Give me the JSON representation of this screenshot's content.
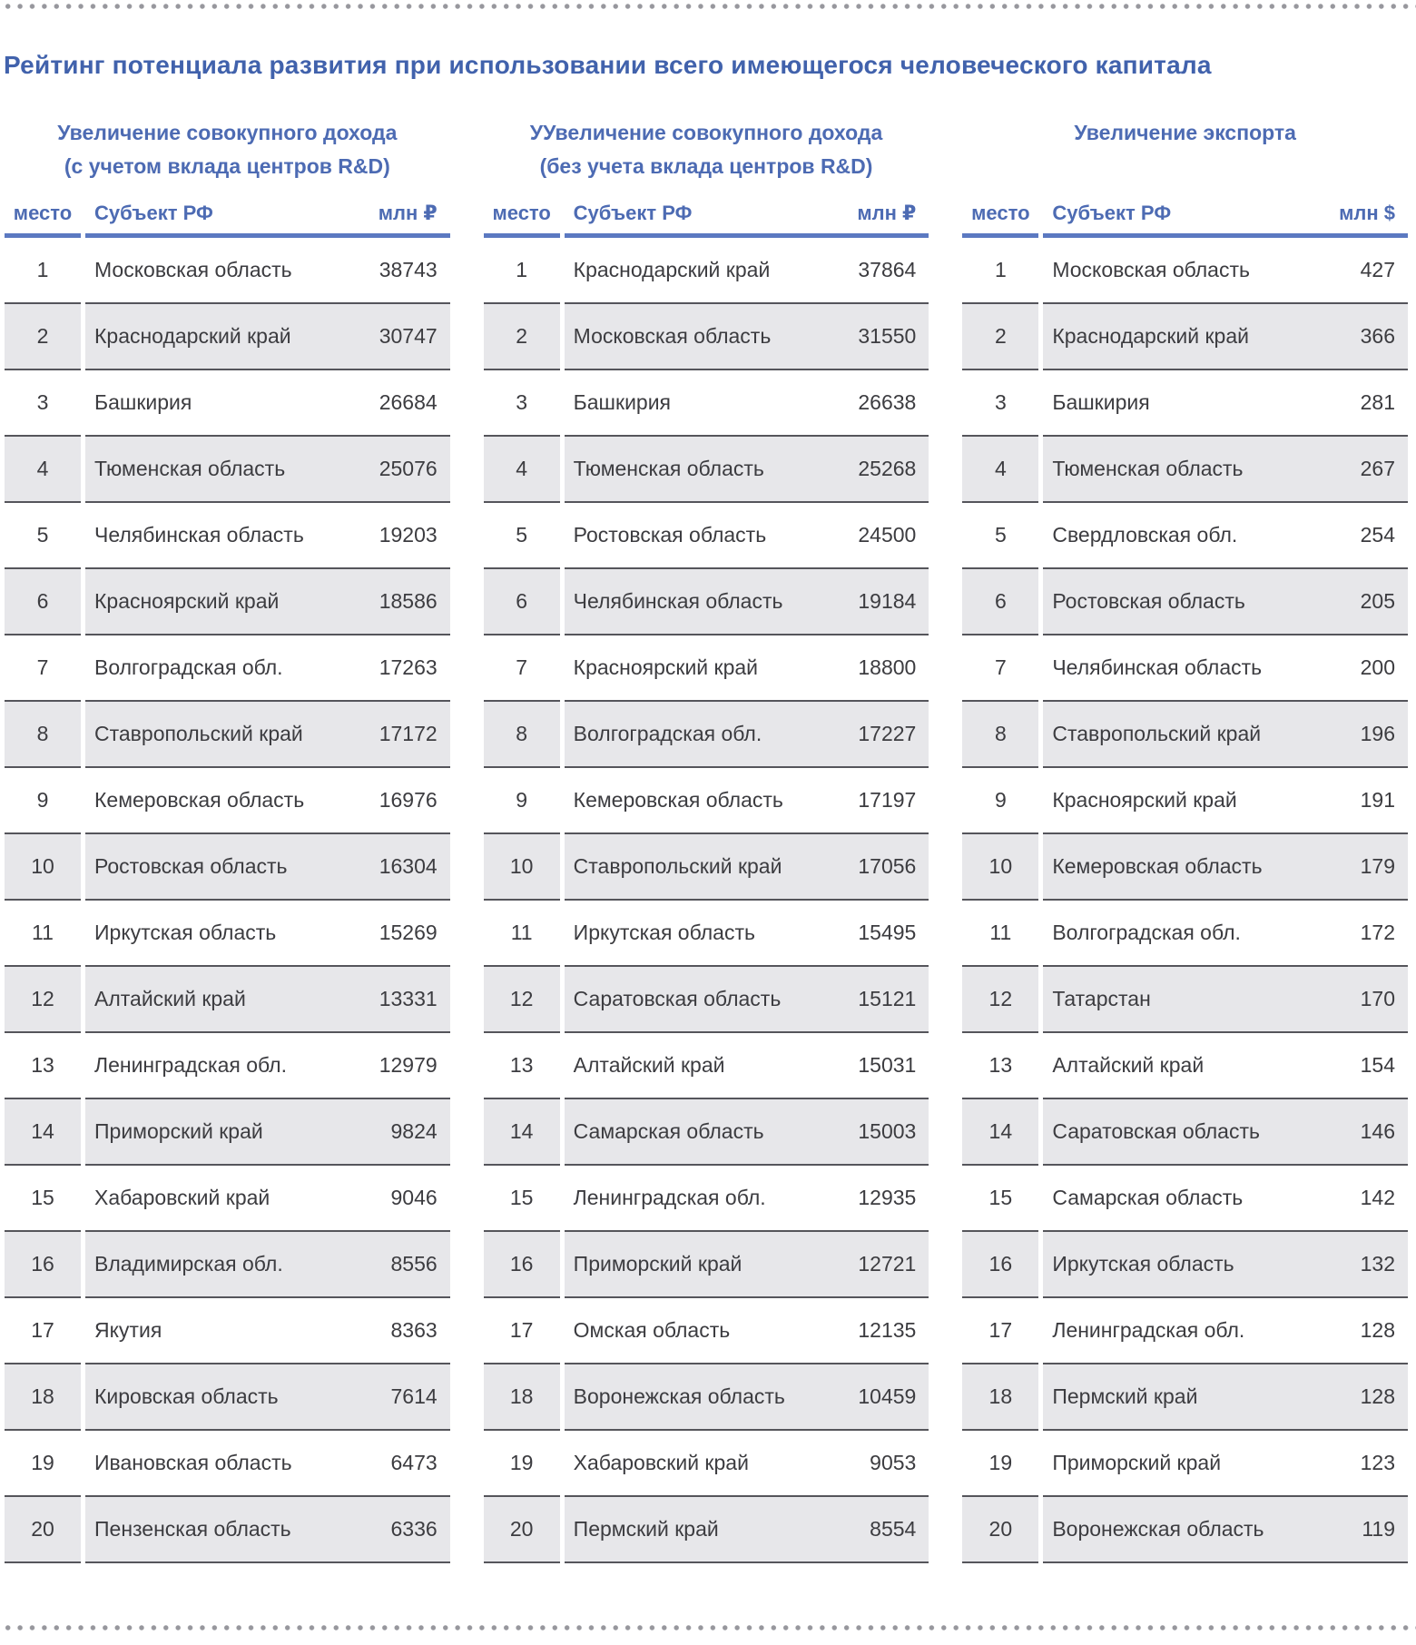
{
  "page": {
    "title": "Рейтинг потенциала развития при использовании всего имеющегося человеческого капитала"
  },
  "colors": {
    "title_blue": "#4162ac",
    "header_blue": "#4d6bb3",
    "header_rule_blue": "#5b79c1",
    "row_separator": "#55555b",
    "row_alt_gray": "#e7e7ea",
    "body_text": "#3c3c40",
    "dot_gray": "#97979d"
  },
  "tables": [
    {
      "title_line1": "Увеличение совокупного дохода",
      "title_line2": "(с учетом вклада центров R&D)",
      "columns": {
        "place": "место",
        "subject": "Субъект РФ",
        "value": "млн ₽"
      },
      "rows": [
        {
          "place": "1",
          "subject": "Московская область",
          "value": "38743"
        },
        {
          "place": "2",
          "subject": "Краснодарский край",
          "value": "30747"
        },
        {
          "place": "3",
          "subject": "Башкирия",
          "value": "26684"
        },
        {
          "place": "4",
          "subject": "Тюменская область",
          "value": "25076"
        },
        {
          "place": "5",
          "subject": "Челябинская область",
          "value": "19203"
        },
        {
          "place": "6",
          "subject": "Красноярский край",
          "value": "18586"
        },
        {
          "place": "7",
          "subject": "Волгоградская обл.",
          "value": "17263"
        },
        {
          "place": "8",
          "subject": "Ставропольский край",
          "value": "17172"
        },
        {
          "place": "9",
          "subject": "Кемеровская область",
          "value": "16976"
        },
        {
          "place": "10",
          "subject": "Ростовская область",
          "value": "16304"
        },
        {
          "place": "11",
          "subject": "Иркутская область",
          "value": "15269"
        },
        {
          "place": "12",
          "subject": "Алтайский край",
          "value": "13331"
        },
        {
          "place": "13",
          "subject": "Ленинградская обл.",
          "value": "12979"
        },
        {
          "place": "14",
          "subject": "Приморский край",
          "value": "9824"
        },
        {
          "place": "15",
          "subject": "Хабаровский край",
          "value": "9046"
        },
        {
          "place": "16",
          "subject": "Владимирская обл.",
          "value": "8556"
        },
        {
          "place": "17",
          "subject": "Якутия",
          "value": "8363"
        },
        {
          "place": "18",
          "subject": "Кировская область",
          "value": "7614"
        },
        {
          "place": "19",
          "subject": "Ивановская область",
          "value": "6473"
        },
        {
          "place": "20",
          "subject": "Пензенская область",
          "value": "6336"
        }
      ]
    },
    {
      "title_line1": "УУвеличение совокупного дохода",
      "title_line2": "(без учета вклада центров R&D)",
      "columns": {
        "place": "место",
        "subject": "Субъект РФ",
        "value": "млн ₽"
      },
      "rows": [
        {
          "place": "1",
          "subject": "Краснодарский край",
          "value": "37864"
        },
        {
          "place": "2",
          "subject": "Московская область",
          "value": "31550"
        },
        {
          "place": "3",
          "subject": "Башкирия",
          "value": "26638"
        },
        {
          "place": "4",
          "subject": "Тюменская область",
          "value": "25268"
        },
        {
          "place": "5",
          "subject": "Ростовская область",
          "value": "24500"
        },
        {
          "place": "6",
          "subject": "Челябинская область",
          "value": "19184"
        },
        {
          "place": "7",
          "subject": "Красноярский край",
          "value": "18800"
        },
        {
          "place": "8",
          "subject": "Волгоградская обл.",
          "value": "17227"
        },
        {
          "place": "9",
          "subject": "Кемеровская область",
          "value": "17197"
        },
        {
          "place": "10",
          "subject": "Ставропольский край",
          "value": "17056"
        },
        {
          "place": "11",
          "subject": "Иркутская область",
          "value": "15495"
        },
        {
          "place": "12",
          "subject": "Саратовская область",
          "value": "15121"
        },
        {
          "place": "13",
          "subject": "Алтайский край",
          "value": "15031"
        },
        {
          "place": "14",
          "subject": "Самарская область",
          "value": "15003"
        },
        {
          "place": "15",
          "subject": "Ленинградская обл.",
          "value": "12935"
        },
        {
          "place": "16",
          "subject": "Приморский край",
          "value": "12721"
        },
        {
          "place": "17",
          "subject": "Омская область",
          "value": "12135"
        },
        {
          "place": "18",
          "subject": "Воронежская область",
          "value": "10459"
        },
        {
          "place": "19",
          "subject": "Хабаровский край",
          "value": "9053"
        },
        {
          "place": "20",
          "subject": "Пермский край",
          "value": "8554"
        }
      ]
    },
    {
      "title_line1": "Увеличение экспорта",
      "title_line2": "",
      "columns": {
        "place": "место",
        "subject": "Субъект РФ",
        "value": "млн $"
      },
      "rows": [
        {
          "place": "1",
          "subject": "Московская область",
          "value": "427"
        },
        {
          "place": "2",
          "subject": "Краснодарский край",
          "value": "366"
        },
        {
          "place": "3",
          "subject": "Башкирия",
          "value": "281"
        },
        {
          "place": "4",
          "subject": "Тюменская область",
          "value": "267"
        },
        {
          "place": "5",
          "subject": "Свердловская обл.",
          "value": "254"
        },
        {
          "place": "6",
          "subject": "Ростовская область",
          "value": "205"
        },
        {
          "place": "7",
          "subject": "Челябинская область",
          "value": "200"
        },
        {
          "place": "8",
          "subject": "Ставропольский край",
          "value": "196"
        },
        {
          "place": "9",
          "subject": "Красноярский край",
          "value": "191"
        },
        {
          "place": "10",
          "subject": "Кемеровская область",
          "value": "179"
        },
        {
          "place": "11",
          "subject": "Волгоградская обл.",
          "value": "172"
        },
        {
          "place": "12",
          "subject": "Татарстан",
          "value": "170"
        },
        {
          "place": "13",
          "subject": "Алтайский край",
          "value": "154"
        },
        {
          "place": "14",
          "subject": "Саратовская область",
          "value": "146"
        },
        {
          "place": "15",
          "subject": "Самарская область",
          "value": "142"
        },
        {
          "place": "16",
          "subject": "Иркутская область",
          "value": "132"
        },
        {
          "place": "17",
          "subject": "Ленинградская обл.",
          "value": "128"
        },
        {
          "place": "18",
          "subject": "Пермский край",
          "value": "128"
        },
        {
          "place": "19",
          "subject": "Приморский край",
          "value": "123"
        },
        {
          "place": "20",
          "subject": "Воронежская область",
          "value": "119"
        }
      ]
    }
  ]
}
